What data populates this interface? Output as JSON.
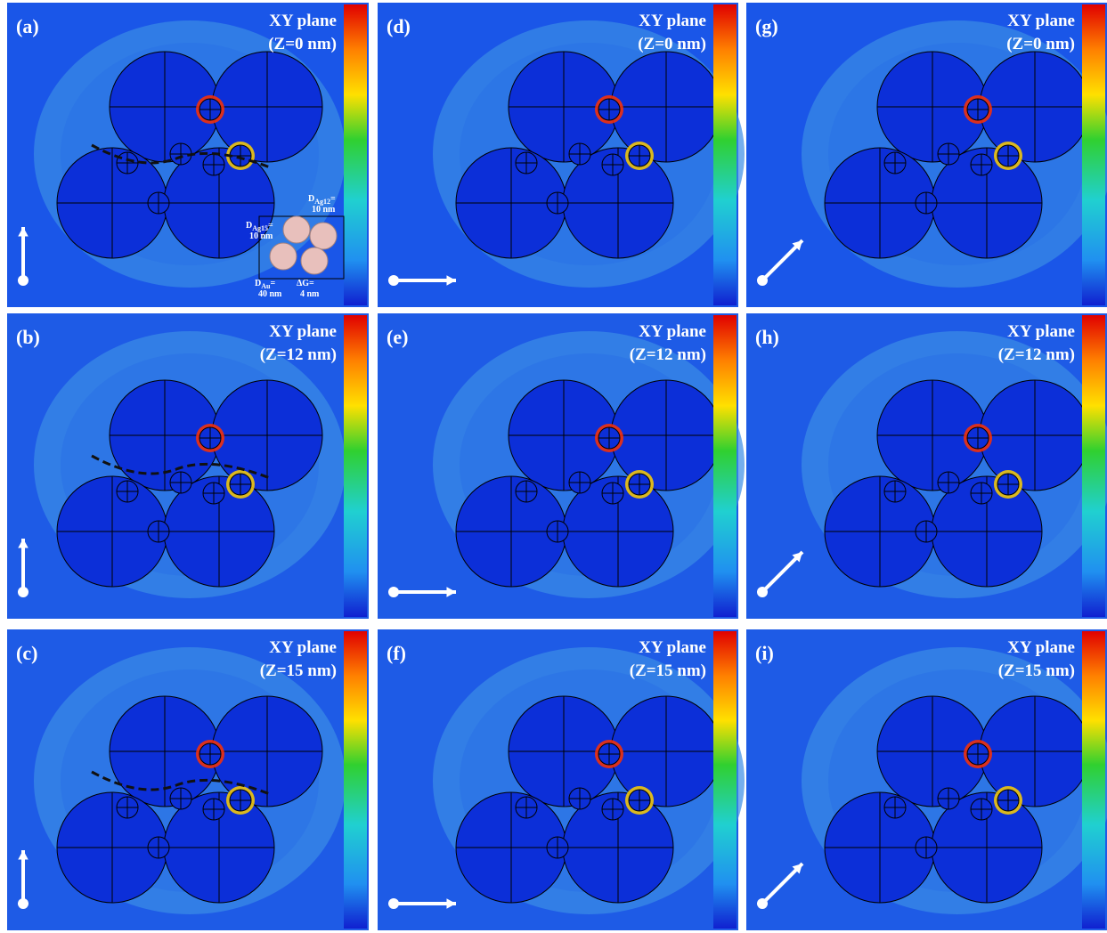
{
  "panels": [
    {
      "label": "(a)",
      "plane": "XY plane",
      "z": "(Z=0 nm)"
    },
    {
      "label": "(b)",
      "plane": "XY plane",
      "z": "(Z=12 nm)"
    },
    {
      "label": "(c)",
      "plane": "XY plane",
      "z": "(Z=15 nm)"
    },
    {
      "label": "(d)",
      "plane": "XY plane",
      "z": "(Z=0 nm)"
    },
    {
      "label": "(e)",
      "plane": "XY plane",
      "z": "(Z=12 nm)"
    },
    {
      "label": "(f)",
      "plane": "XY plane",
      "z": "(Z=15 nm)"
    },
    {
      "label": "(g)",
      "plane": "XY plane",
      "z": "(Z=0 nm)"
    },
    {
      "label": "(h)",
      "plane": "XY plane",
      "z": "(Z=12 nm)"
    },
    {
      "label": "(i)",
      "plane": "XY plane",
      "z": "(Z=15 nm)"
    }
  ],
  "inset": {
    "labels": [
      {
        "main": "D",
        "sub": "Ag12",
        "eq": "=",
        "value": "10 nm"
      },
      {
        "main": "D",
        "sub": "Ag15",
        "eq": "=",
        "value": "10 nm"
      },
      {
        "main": "D",
        "sub": "Au",
        "eq": "=",
        "value": "40 nm"
      },
      {
        "main": "ΔG=",
        "value": "4 nm"
      }
    ]
  }
}
